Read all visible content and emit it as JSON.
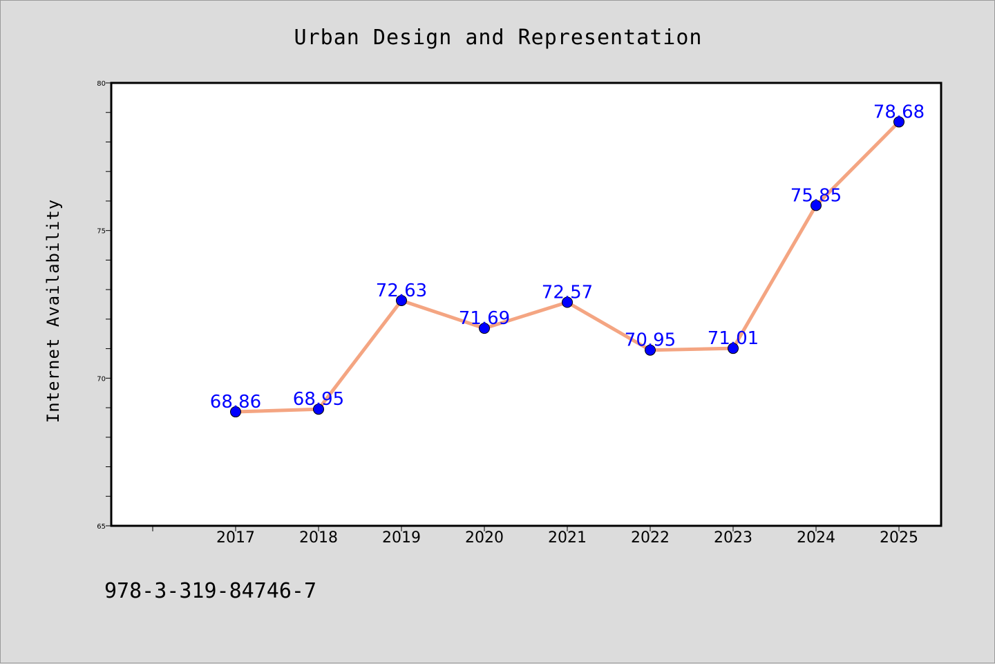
{
  "chart_data": {
    "type": "line",
    "title": "Urban Design and Representation",
    "ylabel": "Internet Availability",
    "xlabel": "",
    "categories": [
      "2017",
      "2018",
      "2019",
      "2020",
      "2021",
      "2022",
      "2023",
      "2024",
      "2025"
    ],
    "series": [
      {
        "values": [
          68.86,
          68.95,
          72.63,
          71.69,
          72.57,
          70.95,
          71.01,
          75.85,
          78.68
        ],
        "data_labels": [
          "68.86",
          "68.95",
          "72.63",
          "71.69",
          "72.57",
          "70.95",
          "71.01",
          "75.85",
          "78.68"
        ]
      }
    ],
    "ylim": [
      65,
      80
    ],
    "yticks": [
      "65",
      "70",
      "75",
      "80"
    ],
    "grid": false,
    "colors": {
      "line": "#f4a582",
      "marker": "#0000ff",
      "labels": "#0000ff"
    }
  },
  "footnote": "978-3-319-84746-7"
}
